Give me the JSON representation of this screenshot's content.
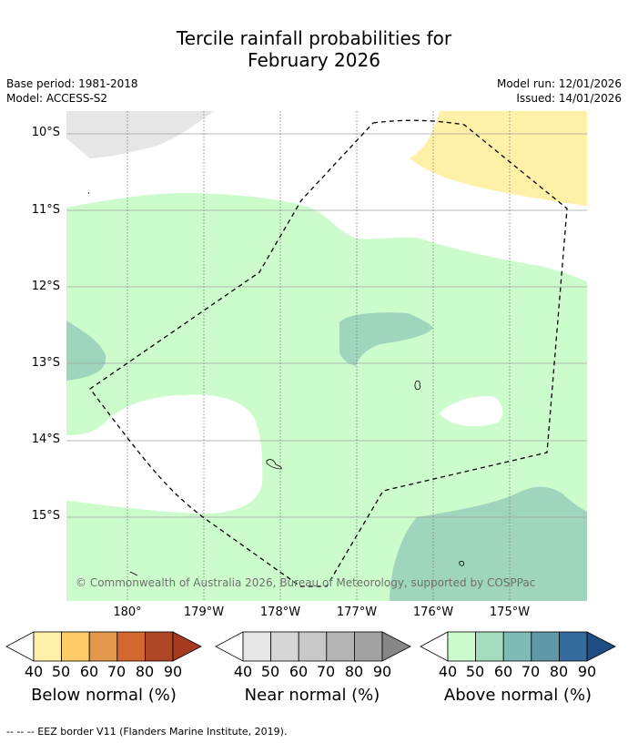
{
  "title_line1": "Tercile rainfall probabilities for",
  "title_line2": "February 2026",
  "base_period": "Base period: 1981-2018",
  "model": "Model: ACCESS-S2",
  "model_run": "Model run: 12/01/2026",
  "issued": "Issued: 14/01/2026",
  "lat_labels": [
    "10°S",
    "11°S",
    "12°S",
    "13°S",
    "14°S",
    "15°S"
  ],
  "lon_labels": [
    "180°",
    "179°W",
    "178°W",
    "177°W",
    "176°W",
    "175°W"
  ],
  "copyright": "© Commonwealth of Australia 2026, Bureau of Meteorology, supported by COSPPac",
  "colorbars": [
    {
      "label": "Below normal (%)",
      "ticks": [
        "40",
        "50",
        "60",
        "70",
        "80",
        "90"
      ],
      "colors": [
        "#fff0a8",
        "#fdcb67",
        "#e2974a",
        "#d2682f",
        "#ad4727",
        "#a53a20"
      ]
    },
    {
      "label": "Near normal (%)",
      "ticks": [
        "40",
        "50",
        "60",
        "70",
        "80",
        "90"
      ],
      "colors": [
        "#e6e6e6",
        "#d6d6d6",
        "#c8c8c8",
        "#b4b4b4",
        "#a2a2a2",
        "#868686"
      ]
    },
    {
      "label": "Above normal (%)",
      "ticks": [
        "40",
        "50",
        "60",
        "70",
        "80",
        "90"
      ],
      "colors": [
        "#ccfccc",
        "#a5dcbe",
        "#7fbab6",
        "#5e97a6",
        "#346a9e",
        "#1e4c83"
      ]
    }
  ],
  "footer": "-- -- -- EEZ border V11 (Flanders Marine Institute, 2019).",
  "colors": {
    "above_40": "#ccfccc",
    "above_50": "#9fd5bc",
    "below_40": "#fff0a8",
    "near_40": "#e6e6e6"
  }
}
